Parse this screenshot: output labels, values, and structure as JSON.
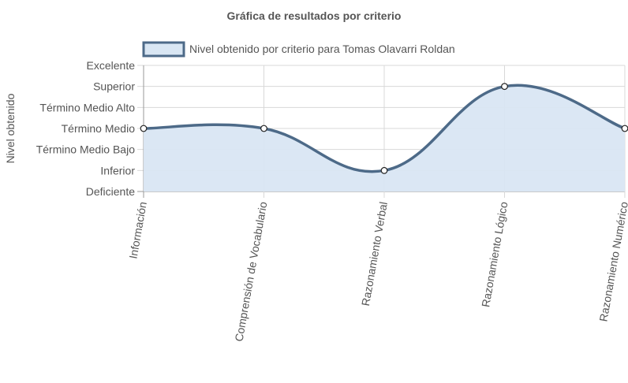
{
  "chart_data": {
    "type": "line",
    "title": "Gráfica de resultados por criterio",
    "ylabel": "Nivel obtenido",
    "xlabel": "",
    "y_levels": [
      "Deficiente",
      "Inferior",
      "Término Medio Bajo",
      "Término Medio",
      "Término Medio Alto",
      "Superior",
      "Excelente"
    ],
    "ylim": [
      0,
      6
    ],
    "categories": [
      "Información",
      "Comprensión de Vocabulario",
      "Razonamiento Verbal",
      "Razonamiento Lógico",
      "Razonamiento Numérico"
    ],
    "series": [
      {
        "name": "Nivel obtenido por criterio para Tomas Olavarri Roldan",
        "values": [
          3,
          3,
          1,
          5,
          3
        ]
      }
    ],
    "grid": true,
    "legend_position": "top",
    "colors": {
      "line": "#4d6a88",
      "fill": "#d9e6f3",
      "grid": "#d8d8d8",
      "axis": "#999999"
    }
  }
}
